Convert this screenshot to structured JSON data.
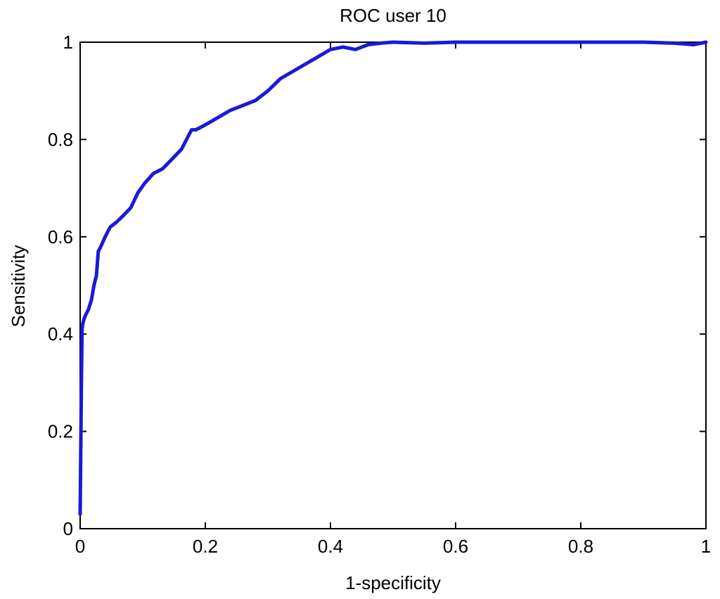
{
  "chart_data": {
    "type": "line",
    "title": "ROC user 10",
    "xlabel": "1-specificity",
    "ylabel": "Sensitivity",
    "xlim": [
      0,
      1
    ],
    "ylim": [
      0,
      1
    ],
    "x_ticks": [
      "0",
      "0.2",
      "0.4",
      "0.6",
      "0.8",
      "1"
    ],
    "y_ticks": [
      "0",
      "0.2",
      "0.4",
      "0.6",
      "0.8",
      "1"
    ],
    "x_tick_values": [
      0,
      0.2,
      0.4,
      0.6,
      0.8,
      1
    ],
    "y_tick_values": [
      0,
      0.2,
      0.4,
      0.6,
      0.8,
      1
    ],
    "grid": false,
    "line_color": "#1a1ad6",
    "series": [
      {
        "x": [
          0,
          0.002,
          0.003,
          0.004,
          0.006,
          0.009,
          0.013,
          0.018,
          0.022,
          0.026,
          0.029,
          0.033,
          0.04,
          0.048,
          0.058,
          0.07,
          0.081,
          0.092,
          0.103,
          0.117,
          0.132,
          0.147,
          0.162,
          0.17,
          0.178,
          0.185,
          0.2,
          0.22,
          0.24,
          0.26,
          0.28,
          0.3,
          0.32,
          0.34,
          0.36,
          0.38,
          0.4,
          0.42,
          0.44,
          0.46,
          0.48,
          0.5,
          0.55,
          0.6,
          0.7,
          0.8,
          0.9,
          0.95,
          0.98,
          1.0
        ],
        "y": [
          0.03,
          0.3,
          0.41,
          0.42,
          0.43,
          0.44,
          0.45,
          0.47,
          0.5,
          0.52,
          0.57,
          0.58,
          0.6,
          0.62,
          0.63,
          0.645,
          0.66,
          0.69,
          0.71,
          0.73,
          0.74,
          0.76,
          0.78,
          0.8,
          0.82,
          0.82,
          0.83,
          0.845,
          0.86,
          0.87,
          0.88,
          0.9,
          0.925,
          0.94,
          0.955,
          0.97,
          0.985,
          0.99,
          0.985,
          0.995,
          0.998,
          1.0,
          0.998,
          1.0,
          1.0,
          1.0,
          1.0,
          0.998,
          0.995,
          1.0
        ]
      }
    ]
  }
}
